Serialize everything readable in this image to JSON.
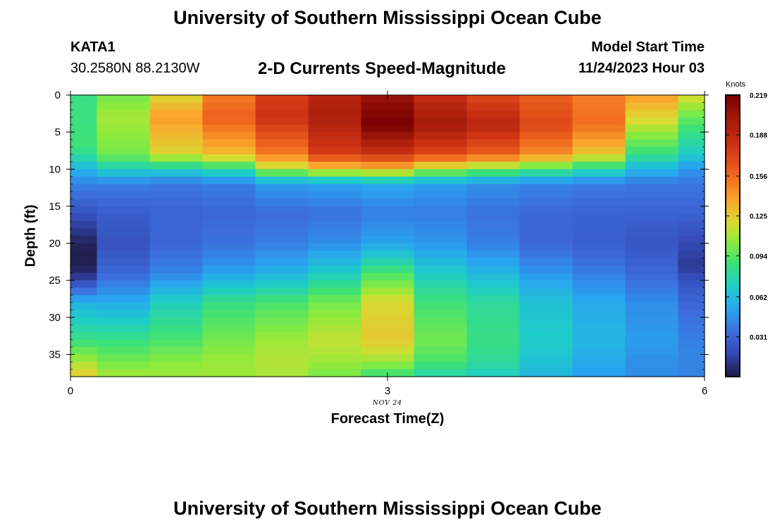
{
  "page": {
    "title": "University of Southern Mississippi Ocean Cube",
    "station": "KATA1",
    "coords": "30.2580N  88.2130W",
    "subtitle": "2-D Currents Speed-Magnitude",
    "start_label": "Model Start Time",
    "start_value": "11/24/2023 Hour 03",
    "bottom_title": "University of Southern Mississippi Ocean Cube"
  },
  "chart_data": {
    "type": "heatmap",
    "xlabel": "Forecast Time(Z)",
    "ylabel": "Depth (ft)",
    "x_date_label": "NOV 24",
    "xlim": [
      0,
      6
    ],
    "ylim": [
      38,
      0
    ],
    "x_ticks": [
      0,
      3,
      6
    ],
    "y_ticks": [
      0,
      5,
      10,
      15,
      20,
      25,
      30,
      35
    ],
    "colorbar": {
      "title": "Knots",
      "ticks": [
        "0.219",
        "0.188",
        "0.156",
        "0.125",
        "0.094",
        "0.062",
        "0.031"
      ],
      "range": [
        0,
        0.219
      ]
    },
    "times": [
      0,
      0.5,
      1,
      1.5,
      2,
      2.5,
      3,
      3.5,
      4,
      4.5,
      5,
      5.5,
      6
    ],
    "depth_profiles": [
      [
        [
          0,
          0.085
        ],
        [
          7,
          0.088
        ],
        [
          9,
          0.072
        ],
        [
          10,
          0.058
        ],
        [
          12,
          0.042
        ],
        [
          16,
          0.022
        ],
        [
          20,
          0.004
        ],
        [
          22,
          0.002
        ],
        [
          24,
          0.006
        ],
        [
          26,
          0.03
        ],
        [
          28,
          0.058
        ],
        [
          33,
          0.085
        ],
        [
          36,
          0.11
        ],
        [
          38,
          0.125
        ]
      ],
      [
        [
          0,
          0.1
        ],
        [
          3,
          0.11
        ],
        [
          8,
          0.1
        ],
        [
          10,
          0.072
        ],
        [
          12,
          0.04
        ],
        [
          16,
          0.028
        ],
        [
          20,
          0.022
        ],
        [
          24,
          0.032
        ],
        [
          28,
          0.055
        ],
        [
          33,
          0.085
        ],
        [
          36,
          0.1
        ],
        [
          38,
          0.11
        ]
      ],
      [
        [
          0,
          0.12
        ],
        [
          3,
          0.14
        ],
        [
          8,
          0.12
        ],
        [
          10,
          0.072
        ],
        [
          12,
          0.038
        ],
        [
          16,
          0.03
        ],
        [
          20,
          0.032
        ],
        [
          24,
          0.042
        ],
        [
          28,
          0.072
        ],
        [
          33,
          0.09
        ],
        [
          36,
          0.105
        ],
        [
          38,
          0.108
        ]
      ],
      [
        [
          0,
          0.15
        ],
        [
          3,
          0.16
        ],
        [
          8,
          0.13
        ],
        [
          10,
          0.08
        ],
        [
          12,
          0.04
        ],
        [
          16,
          0.032
        ],
        [
          20,
          0.036
        ],
        [
          24,
          0.052
        ],
        [
          28,
          0.085
        ],
        [
          33,
          0.1
        ],
        [
          36,
          0.108
        ],
        [
          38,
          0.108
        ]
      ],
      [
        [
          0,
          0.175
        ],
        [
          3,
          0.18
        ],
        [
          8,
          0.15
        ],
        [
          10,
          0.11
        ],
        [
          12,
          0.05
        ],
        [
          16,
          0.034
        ],
        [
          20,
          0.04
        ],
        [
          24,
          0.058
        ],
        [
          28,
          0.09
        ],
        [
          33,
          0.108
        ],
        [
          36,
          0.112
        ],
        [
          38,
          0.11
        ]
      ],
      [
        [
          0,
          0.19
        ],
        [
          3,
          0.195
        ],
        [
          8,
          0.175
        ],
        [
          10,
          0.125
        ],
        [
          12,
          0.052
        ],
        [
          16,
          0.036
        ],
        [
          20,
          0.045
        ],
        [
          24,
          0.07
        ],
        [
          28,
          0.1
        ],
        [
          33,
          0.115
        ],
        [
          36,
          0.108
        ],
        [
          38,
          0.1
        ]
      ],
      [
        [
          0,
          0.205
        ],
        [
          4,
          0.219
        ],
        [
          8,
          0.18
        ],
        [
          10,
          0.13
        ],
        [
          12,
          0.055
        ],
        [
          16,
          0.04
        ],
        [
          20,
          0.052
        ],
        [
          24,
          0.09
        ],
        [
          28,
          0.12
        ],
        [
          33,
          0.125
        ],
        [
          36,
          0.108
        ],
        [
          38,
          0.085
        ]
      ],
      [
        [
          0,
          0.185
        ],
        [
          4,
          0.2
        ],
        [
          8,
          0.17
        ],
        [
          10,
          0.11
        ],
        [
          12,
          0.05
        ],
        [
          16,
          0.04
        ],
        [
          20,
          0.048
        ],
        [
          24,
          0.07
        ],
        [
          28,
          0.088
        ],
        [
          33,
          0.1
        ],
        [
          36,
          0.09
        ],
        [
          38,
          0.075
        ]
      ],
      [
        [
          0,
          0.17
        ],
        [
          4,
          0.19
        ],
        [
          8,
          0.16
        ],
        [
          10,
          0.1
        ],
        [
          12,
          0.046
        ],
        [
          16,
          0.036
        ],
        [
          20,
          0.04
        ],
        [
          24,
          0.06
        ],
        [
          28,
          0.08
        ],
        [
          33,
          0.085
        ],
        [
          36,
          0.08
        ],
        [
          38,
          0.07
        ]
      ],
      [
        [
          0,
          0.16
        ],
        [
          4,
          0.17
        ],
        [
          8,
          0.145
        ],
        [
          10,
          0.09
        ],
        [
          12,
          0.042
        ],
        [
          16,
          0.032
        ],
        [
          20,
          0.032
        ],
        [
          24,
          0.048
        ],
        [
          28,
          0.065
        ],
        [
          33,
          0.07
        ],
        [
          36,
          0.065
        ],
        [
          38,
          0.06
        ]
      ],
      [
        [
          0,
          0.15
        ],
        [
          4,
          0.155
        ],
        [
          8,
          0.125
        ],
        [
          10,
          0.078
        ],
        [
          12,
          0.04
        ],
        [
          16,
          0.03
        ],
        [
          20,
          0.028
        ],
        [
          24,
          0.04
        ],
        [
          28,
          0.055
        ],
        [
          33,
          0.06
        ],
        [
          36,
          0.055
        ],
        [
          38,
          0.05
        ]
      ],
      [
        [
          0,
          0.14
        ],
        [
          4,
          0.115
        ],
        [
          8,
          0.085
        ],
        [
          10,
          0.06
        ],
        [
          12,
          0.038
        ],
        [
          16,
          0.03
        ],
        [
          20,
          0.024
        ],
        [
          24,
          0.032
        ],
        [
          28,
          0.045
        ],
        [
          33,
          0.05
        ],
        [
          36,
          0.046
        ],
        [
          38,
          0.044
        ]
      ],
      [
        [
          0,
          0.12
        ],
        [
          4,
          0.09
        ],
        [
          8,
          0.07
        ],
        [
          10,
          0.048
        ],
        [
          12,
          0.038
        ],
        [
          16,
          0.03
        ],
        [
          20,
          0.018
        ],
        [
          23,
          0.012
        ],
        [
          26,
          0.026
        ],
        [
          30,
          0.036
        ],
        [
          34,
          0.042
        ],
        [
          38,
          0.042
        ]
      ]
    ]
  }
}
